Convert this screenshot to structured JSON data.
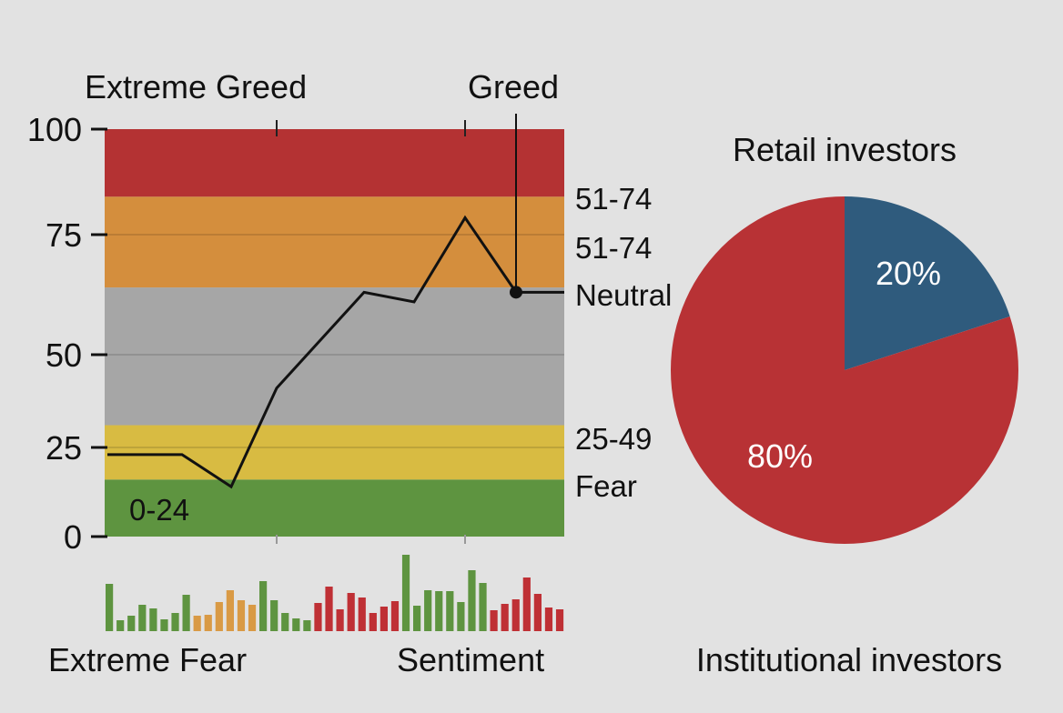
{
  "chart_data": [
    {
      "type": "line",
      "top_labels": [
        "Extreme Greed",
        "Greed"
      ],
      "bottom_labels": [
        "Extreme Fear",
        "Sentiment"
      ],
      "y_ticks": [
        0,
        25,
        50,
        75,
        100
      ],
      "ylim": [
        0,
        100
      ],
      "grid": true,
      "bands": [
        {
          "from": 0,
          "to": 16,
          "color": "#5e9440"
        },
        {
          "from": 16,
          "to": 31,
          "color": "#d8bb42"
        },
        {
          "from": 31,
          "to": 64,
          "color": "#a6a6a6"
        },
        {
          "from": 64,
          "to": 84,
          "color": "#d48e3d"
        },
        {
          "from": 84,
          "to": 100,
          "color": "#b43233"
        }
      ],
      "band_labels": [
        "51-74",
        "51-74",
        "Neutral",
        "25-49",
        "Fear",
        "0-24"
      ],
      "series": [
        {
          "values": [
            23,
            23,
            14,
            41,
            63,
            61,
            79,
            63,
            63
          ],
          "color": "#111111"
        }
      ],
      "marker_index": 7
    },
    {
      "type": "bar",
      "values": [
        52,
        12,
        17,
        29,
        25,
        13,
        20,
        40,
        17,
        18,
        32,
        45,
        34,
        29,
        55,
        34,
        20,
        14,
        12,
        31,
        49,
        24,
        42,
        37,
        20,
        27,
        33,
        84,
        28,
        45,
        44,
        44,
        32,
        67,
        53,
        23,
        30,
        35,
        59,
        41,
        26,
        24
      ],
      "color_groups": [
        {
          "count": 8,
          "color": "#5e9440"
        },
        {
          "count": 6,
          "color": "#d99a45"
        },
        {
          "count": 5,
          "color": "#5e9440"
        },
        {
          "count": 8,
          "color": "#bf3035"
        },
        {
          "count": 8,
          "color": "#5e9440"
        },
        {
          "count": 7,
          "color": "#bf3035"
        }
      ]
    },
    {
      "type": "pie",
      "title": "Retail investors",
      "footer": "Institutional investors",
      "slices": [
        {
          "label": "20%",
          "value": 20,
          "color": "#2f5b7d"
        },
        {
          "label": "80%",
          "value": 80,
          "color": "#b83235"
        }
      ]
    }
  ]
}
